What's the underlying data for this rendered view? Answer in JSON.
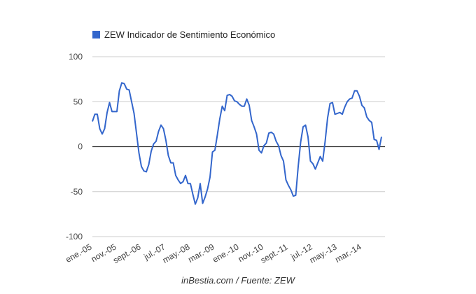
{
  "chart_data": {
    "type": "line",
    "title": "",
    "xlabel": "",
    "ylabel": "",
    "ylim": [
      -100,
      100
    ],
    "yticks": [
      100,
      50,
      0,
      -50,
      -100
    ],
    "grid": true,
    "legend_position": "top-left",
    "x_tick_labels": [
      "ene.-05",
      "nov.-05",
      "sept.-06",
      "jul.-07",
      "may.-08",
      "mar.-09",
      "ene.-10",
      "nov.-10",
      "sept.-11",
      "jul.-12",
      "may.-13",
      "mar.-14"
    ],
    "series": [
      {
        "name": "ZEW Indicador de Sentimiento Económico",
        "color": "#3366cc",
        "start": "ene.-05",
        "frequency": "monthly",
        "values": [
          28,
          36,
          36,
          20,
          14,
          20,
          38,
          49,
          39,
          39,
          39,
          62,
          71,
          70,
          64,
          63,
          50,
          37,
          15,
          -7,
          -22,
          -27,
          -28,
          -20,
          -5,
          3,
          6,
          17,
          24,
          20,
          7,
          -10,
          -18,
          -18,
          -32,
          -37,
          -41,
          -39,
          -32,
          -41,
          -41,
          -53,
          -64,
          -57,
          -41,
          -63,
          -56,
          -47,
          -34,
          -6,
          -4,
          13,
          31,
          45,
          40,
          57,
          58,
          56,
          51,
          50,
          47,
          45,
          45,
          53,
          46,
          29,
          22,
          14,
          -4,
          -7,
          1,
          4,
          15,
          16,
          14,
          6,
          1,
          -10,
          -16,
          -37,
          -43,
          -48,
          -55,
          -54,
          -22,
          5,
          22,
          24,
          11,
          -16,
          -19,
          -25,
          -18,
          -11,
          -16,
          6,
          32,
          48,
          49,
          36,
          37,
          38,
          36,
          44,
          50,
          53,
          54,
          62,
          62,
          56,
          46,
          43,
          33,
          29,
          27,
          8,
          7,
          -3,
          11
        ]
      }
    ]
  },
  "caption": "inBestia.com / Fuente: ZEW"
}
